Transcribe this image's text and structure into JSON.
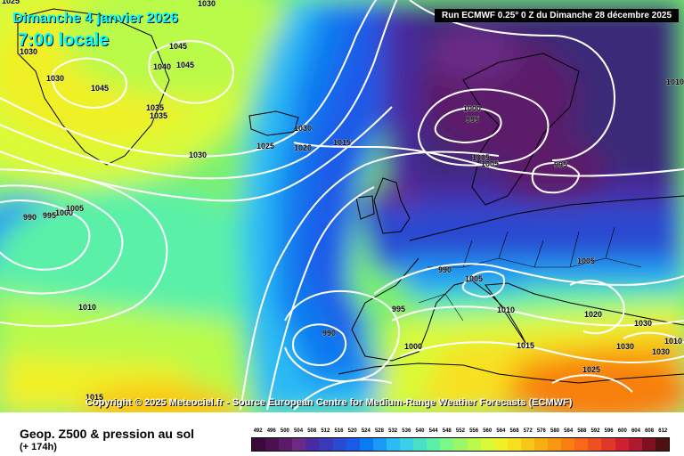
{
  "overlay": {
    "date": "Dimanche 4 janvier 2026",
    "time": "7:00 locale",
    "run": "Run ECMWF 0.25° 0 Z du Dimanche 28 décembre 2025",
    "copyright": "Copyright © 2025 Meteociel.fr - Source European Centre for Medium-Range Weather Forecasts (ECMWF)"
  },
  "footer": {
    "title": "Geop. Z500 & pression au sol",
    "subtitle": "(+ 174h)"
  },
  "scale": {
    "values": [
      "492",
      "496",
      "500",
      "504",
      "508",
      "512",
      "516",
      "520",
      "524",
      "528",
      "532",
      "536",
      "540",
      "544",
      "548",
      "552",
      "556",
      "560",
      "564",
      "568",
      "572",
      "576",
      "580",
      "584",
      "588",
      "592",
      "596",
      "600",
      "604",
      "608",
      "612"
    ],
    "colors": [
      "#3a0a3a",
      "#4a1050",
      "#5c1a6a",
      "#6a2a86",
      "#4a2aa0",
      "#3a3ab8",
      "#2a4ad0",
      "#1a5ae8",
      "#0a7af0",
      "#1a9af5",
      "#2abaf5",
      "#3ad0e8",
      "#4ae0c8",
      "#5af0a8",
      "#7af888",
      "#9af868",
      "#bafa48",
      "#dafa38",
      "#f0f028",
      "#f8e020",
      "#f8c818",
      "#f8b010",
      "#f89810",
      "#f88010",
      "#f86818",
      "#f05020",
      "#e03828",
      "#d02030",
      "#b01830",
      "#801020",
      "#501010"
    ]
  },
  "isobar_labels": [
    {
      "text": "1030",
      "x": 0,
      "y": 0
    },
    {
      "text": "1025",
      "x": 0,
      "y": 0
    },
    {
      "text": "1030",
      "x": 0,
      "y": 0
    },
    {
      "text": "1045",
      "x": 0,
      "y": 0
    },
    {
      "text": "1040",
      "x": 0,
      "y": 0
    },
    {
      "text": "1045",
      "x": 0,
      "y": 0
    },
    {
      "text": "1045",
      "x": 0,
      "y": 0
    },
    {
      "text": "1035",
      "x": 0,
      "y": 0
    },
    {
      "text": "1035",
      "x": 0,
      "y": 0
    },
    {
      "text": "1030",
      "x": 0,
      "y": 0
    },
    {
      "text": "1030",
      "x": 0,
      "y": 0
    },
    {
      "text": "1025",
      "x": 0,
      "y": 0
    },
    {
      "text": "1030",
      "x": 0,
      "y": 0
    },
    {
      "text": "1020",
      "x": 0,
      "y": 0
    },
    {
      "text": "1015",
      "x": 0,
      "y": 0
    },
    {
      "text": "1000",
      "x": 0,
      "y": 0
    },
    {
      "text": "995",
      "x": 0,
      "y": 0
    },
    {
      "text": "1005",
      "x": 0,
      "y": 0
    },
    {
      "text": "1005",
      "x": 0,
      "y": 0
    },
    {
      "text": "995",
      "x": 0,
      "y": 0
    },
    {
      "text": "1010",
      "x": 0,
      "y": 0
    },
    {
      "text": "990",
      "x": 0,
      "y": 0
    },
    {
      "text": "995",
      "x": 0,
      "y": 0
    },
    {
      "text": "1000",
      "x": 0,
      "y": 0
    },
    {
      "text": "1005",
      "x": 0,
      "y": 0
    },
    {
      "text": "1010",
      "x": 0,
      "y": 0
    },
    {
      "text": "990",
      "x": 0,
      "y": 0
    },
    {
      "text": "1005",
      "x": 0,
      "y": 0
    },
    {
      "text": "995",
      "x": 0,
      "y": 0
    },
    {
      "text": "1010",
      "x": 0,
      "y": 0
    },
    {
      "text": "1005",
      "x": 0,
      "y": 0
    },
    {
      "text": "1020",
      "x": 0,
      "y": 0
    },
    {
      "text": "990",
      "x": 0,
      "y": 0
    },
    {
      "text": "1000",
      "x": 0,
      "y": 0
    },
    {
      "text": "1015",
      "x": 0,
      "y": 0
    },
    {
      "text": "1030",
      "x": 0,
      "y": 0
    },
    {
      "text": "1030",
      "x": 0,
      "y": 0
    },
    {
      "text": "1030",
      "x": 0,
      "y": 0
    },
    {
      "text": "1025",
      "x": 0,
      "y": 0
    },
    {
      "text": "1010",
      "x": 0,
      "y": 0
    },
    {
      "text": "1015",
      "x": 0,
      "y": 0
    }
  ]
}
